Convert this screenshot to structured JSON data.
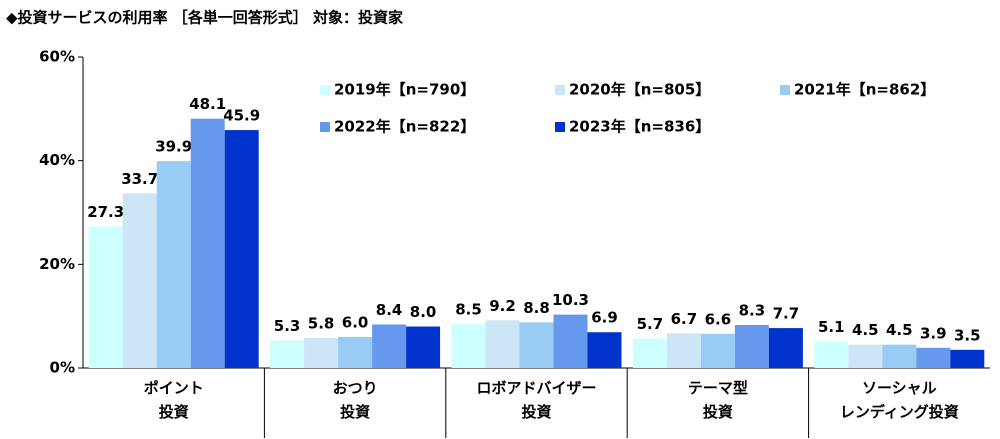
{
  "chart_data": {
    "type": "bar",
    "title": "◆投資サービスの利用率 ［各単一回答形式］ 対象：投資家",
    "categories": [
      "ポイント\n投資",
      "おつり\n投資",
      "ロボアドバイザー\n投資",
      "テーマ型\n投資",
      "ソーシャル\nレンディング投資"
    ],
    "series": [
      {
        "name": "2019年【n=790】",
        "color": "#ccffff",
        "values": [
          27.3,
          5.3,
          8.5,
          5.7,
          5.1
        ],
        "value_labels": [
          "27.3",
          "5.3",
          "8.5",
          "5.7",
          "5.1"
        ]
      },
      {
        "name": "2020年【n=805】",
        "color": "#cce6f8",
        "values": [
          33.7,
          5.8,
          9.2,
          6.7,
          4.5
        ],
        "value_labels": [
          "33.7",
          "5.8",
          "9.2",
          "6.7",
          "4.5"
        ]
      },
      {
        "name": "2021年【n=862】",
        "color": "#99ccf5",
        "values": [
          39.9,
          6.0,
          8.8,
          6.6,
          4.5
        ],
        "value_labels": [
          "39.9",
          "6.0",
          "8.8",
          "6.6",
          "4.5"
        ]
      },
      {
        "name": "2022年【n=822】",
        "color": "#6699ee",
        "values": [
          48.1,
          8.4,
          10.3,
          8.3,
          3.9
        ],
        "value_labels": [
          "48.1",
          "8.4",
          "10.3",
          "8.3",
          "3.9"
        ]
      },
      {
        "name": "2023年【n=836】",
        "color": "#0033cc",
        "values": [
          45.9,
          8.0,
          6.9,
          7.7,
          3.5
        ],
        "value_labels": [
          "45.9",
          "8.0",
          "6.9",
          "7.7",
          "3.5"
        ]
      }
    ],
    "ylim": [
      0,
      60
    ],
    "yticks": [
      {
        "value": 0,
        "label": "0%"
      },
      {
        "value": 20,
        "label": "20%"
      },
      {
        "value": 40,
        "label": "40%"
      },
      {
        "value": 60,
        "label": "60%"
      }
    ],
    "grid": false
  }
}
